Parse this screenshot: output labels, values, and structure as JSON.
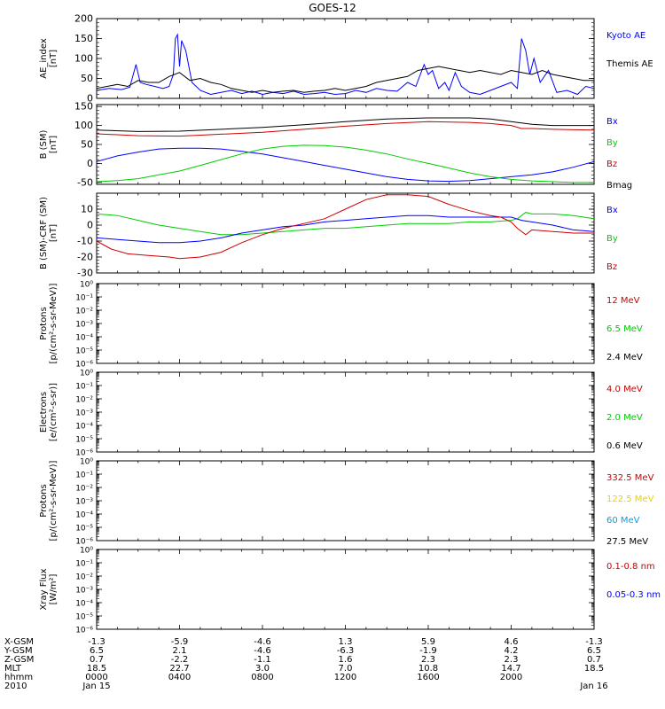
{
  "title": "GOES-12",
  "colors": {
    "black": "#000000",
    "blue": "#0000ff",
    "green": "#00cc00",
    "red": "#cc0000",
    "yellow": "#e6d200",
    "cyan": "#00a0e6"
  },
  "chart_data": [
    {
      "type": "line",
      "ylabel": [
        "AE_index",
        "[nT]"
      ],
      "ylim": [
        0,
        200
      ],
      "yticks": [
        0,
        50,
        100,
        150,
        200
      ],
      "legend": [
        {
          "name": "Kyoto AE",
          "color": "blue"
        },
        {
          "name": "Themis AE",
          "color": "black"
        }
      ],
      "series": [
        {
          "name": "Kyoto AE",
          "color": "blue",
          "x": [
            0,
            0.6,
            1.2,
            1.6,
            1.9,
            2.1,
            2.4,
            2.8,
            3.2,
            3.5,
            3.7,
            3.8,
            3.9,
            4.0,
            4.1,
            4.3,
            4.6,
            5.0,
            5.5,
            6.0,
            6.5,
            7.0,
            7.5,
            8.0,
            8.5,
            9.0,
            9.5,
            10.0,
            10.5,
            11.0,
            11.5,
            12.0,
            12.5,
            13.0,
            13.5,
            14.0,
            14.5,
            15.0,
            15.4,
            15.8,
            16.0,
            16.2,
            16.5,
            16.8,
            17.0,
            17.3,
            17.6,
            18.0,
            18.5,
            19.0,
            19.5,
            20.0,
            20.3,
            20.5,
            20.7,
            20.9,
            21.1,
            21.4,
            21.8,
            22.2,
            22.7,
            23.2,
            23.6,
            24.0
          ],
          "y": [
            20,
            25,
            22,
            28,
            85,
            40,
            35,
            30,
            25,
            30,
            60,
            150,
            160,
            80,
            145,
            120,
            40,
            20,
            10,
            15,
            20,
            12,
            18,
            10,
            15,
            12,
            18,
            10,
            12,
            15,
            10,
            12,
            20,
            15,
            25,
            20,
            18,
            40,
            30,
            85,
            60,
            70,
            25,
            40,
            20,
            65,
            30,
            15,
            10,
            20,
            30,
            40,
            25,
            150,
            120,
            60,
            100,
            40,
            70,
            15,
            20,
            10,
            30,
            25
          ]
        },
        {
          "name": "Themis AE",
          "color": "black",
          "x": [
            0,
            0.5,
            1.0,
            1.5,
            2.0,
            2.5,
            3.0,
            3.5,
            4.0,
            4.5,
            5.0,
            5.5,
            6.0,
            6.5,
            7.0,
            7.5,
            8.0,
            8.5,
            9.0,
            9.5,
            10.0,
            10.5,
            11.0,
            11.5,
            12.0,
            12.5,
            13.0,
            13.5,
            14.0,
            14.5,
            15.0,
            15.5,
            16.0,
            16.5,
            17.0,
            17.5,
            18.0,
            18.5,
            19.0,
            19.5,
            20.0,
            20.5,
            21.0,
            21.5,
            22.0,
            22.5,
            23.0,
            23.5,
            24.0
          ],
          "y": [
            25,
            30,
            35,
            30,
            45,
            40,
            40,
            55,
            65,
            45,
            50,
            40,
            35,
            25,
            20,
            15,
            20,
            15,
            18,
            20,
            15,
            18,
            20,
            25,
            20,
            25,
            30,
            40,
            45,
            50,
            55,
            70,
            75,
            80,
            75,
            70,
            65,
            70,
            65,
            60,
            70,
            65,
            60,
            70,
            60,
            55,
            50,
            45,
            45
          ]
        }
      ]
    },
    {
      "type": "line",
      "ylabel": [
        "B (SM)",
        "[nT]"
      ],
      "ylim": [
        -55,
        155
      ],
      "yticks": [
        -50,
        0,
        50,
        100,
        150
      ],
      "legend": [
        {
          "name": "Bx",
          "color": "blue"
        },
        {
          "name": "By",
          "color": "green"
        },
        {
          "name": "Bz",
          "color": "red"
        },
        {
          "name": "Bmag",
          "color": "black"
        }
      ],
      "series": [
        {
          "name": "Bmag",
          "color": "black",
          "x": [
            0,
            2,
            4,
            6,
            8,
            10,
            12,
            14,
            16,
            18,
            19,
            20,
            21,
            22,
            24
          ],
          "y": [
            88,
            84,
            85,
            90,
            95,
            102,
            110,
            117,
            120,
            120,
            117,
            110,
            103,
            100,
            100
          ]
        },
        {
          "name": "Bz",
          "color": "red",
          "x": [
            0,
            2,
            4,
            6,
            8,
            10,
            12,
            14,
            16,
            18,
            19,
            20,
            20.5,
            21,
            22,
            24
          ],
          "y": [
            78,
            73,
            72,
            77,
            82,
            90,
            98,
            105,
            110,
            108,
            105,
            100,
            92,
            92,
            90,
            88
          ]
        },
        {
          "name": "Bx",
          "color": "blue",
          "x": [
            0,
            1,
            2,
            3,
            4,
            5,
            6,
            7,
            8,
            9,
            10,
            11,
            12,
            13,
            14,
            15,
            16,
            17,
            18,
            19,
            20,
            21,
            22,
            23,
            24
          ],
          "y": [
            5,
            20,
            30,
            38,
            40,
            40,
            38,
            32,
            25,
            15,
            5,
            -5,
            -15,
            -25,
            -35,
            -42,
            -46,
            -47,
            -45,
            -40,
            -35,
            -30,
            -22,
            -10,
            5
          ]
        },
        {
          "name": "By",
          "color": "green",
          "x": [
            0,
            1,
            2,
            3,
            4,
            5,
            6,
            7,
            8,
            9,
            10,
            11,
            12,
            13,
            14,
            15,
            16,
            17,
            18,
            19,
            20,
            21,
            22,
            23,
            24
          ],
          "y": [
            -48,
            -45,
            -40,
            -30,
            -20,
            -5,
            10,
            25,
            38,
            45,
            48,
            47,
            43,
            35,
            25,
            12,
            0,
            -12,
            -25,
            -35,
            -42,
            -46,
            -48,
            -50,
            -50
          ]
        }
      ]
    },
    {
      "type": "line",
      "ylabel": [
        "B (SM)-CRF (SM)",
        "[nT]"
      ],
      "ylim": [
        -30,
        20
      ],
      "yticks": [
        -30,
        -20,
        -10,
        0,
        10
      ],
      "legend": [
        {
          "name": "Bx",
          "color": "blue"
        },
        {
          "name": "By",
          "color": "green"
        },
        {
          "name": "Bz",
          "color": "red"
        }
      ],
      "series": [
        {
          "name": "By",
          "color": "green",
          "x": [
            0,
            1,
            2,
            3,
            4,
            5,
            6,
            7,
            8,
            9,
            10,
            11,
            12,
            13,
            14,
            15,
            16,
            17,
            18,
            19,
            20,
            20.3,
            20.7,
            21,
            22,
            23,
            24
          ],
          "y": [
            7,
            6,
            3,
            0,
            -2,
            -4,
            -6,
            -6,
            -5,
            -4,
            -3,
            -2,
            -2,
            -1,
            0,
            1,
            1,
            1,
            2,
            2,
            3,
            4,
            8,
            7,
            7,
            6,
            4
          ]
        },
        {
          "name": "Bx",
          "color": "blue",
          "x": [
            0,
            1,
            2,
            3,
            4,
            5,
            6,
            7,
            8,
            9,
            10,
            11,
            12,
            13,
            14,
            15,
            16,
            17,
            18,
            19,
            20,
            20.5,
            21,
            22,
            23,
            24
          ],
          "y": [
            -8,
            -9,
            -10,
            -11,
            -11,
            -10,
            -8,
            -5,
            -3,
            -1,
            0,
            2,
            3,
            4,
            5,
            6,
            6,
            5,
            5,
            5,
            5,
            3,
            2,
            0,
            -3,
            -4
          ]
        },
        {
          "name": "Bz",
          "color": "red",
          "x": [
            0,
            0.7,
            1.5,
            2.5,
            3.5,
            4,
            5,
            6,
            7,
            8,
            9,
            10,
            11,
            12,
            13,
            14,
            15,
            16,
            17,
            18,
            19,
            19.5,
            20,
            20.3,
            20.7,
            21,
            22,
            23,
            24
          ],
          "y": [
            -10,
            -15,
            -18,
            -19,
            -20,
            -21,
            -20,
            -17,
            -11,
            -6,
            -2,
            1,
            4,
            10,
            16,
            19,
            19,
            18,
            13,
            9,
            6,
            5,
            2,
            -2,
            -6,
            -3,
            -4,
            -5,
            -5
          ]
        }
      ]
    },
    {
      "type": "line",
      "ylabel": [
        "Protons",
        "[p/(cm²-s-sr-MeV)]"
      ],
      "log": true,
      "yexp_range": [
        -6,
        0
      ],
      "yticks": [
        "10⁻⁶",
        "10⁻⁵",
        "10⁻⁴",
        "10⁻³",
        "10⁻²",
        "10⁻¹",
        "10⁰"
      ],
      "legend": [
        {
          "name": "12 MeV",
          "color": "red"
        },
        {
          "name": "6.5 MeV",
          "color": "green"
        },
        {
          "name": "2.4 MeV",
          "color": "black"
        }
      ],
      "series": []
    },
    {
      "type": "line",
      "ylabel": [
        "Electrons",
        "[e/(cm²-s-sr)]"
      ],
      "log": true,
      "yexp_range": [
        -6,
        0
      ],
      "yticks": [
        "10⁻⁶",
        "10⁻⁵",
        "10⁻⁴",
        "10⁻³",
        "10⁻²",
        "10⁻¹",
        "10⁰"
      ],
      "legend": [
        {
          "name": "4.0 MeV",
          "color": "red"
        },
        {
          "name": "2.0 MeV",
          "color": "green"
        },
        {
          "name": "0.6 MeV",
          "color": "black"
        }
      ],
      "series": []
    },
    {
      "type": "line",
      "ylabel": [
        "Protons",
        "[p/(cm²-s-sr-MeV)]"
      ],
      "log": true,
      "yexp_range": [
        -6,
        0
      ],
      "yticks": [
        "10⁻⁶",
        "10⁻⁵",
        "10⁻⁴",
        "10⁻³",
        "10⁻²",
        "10⁻¹",
        "10⁰"
      ],
      "legend": [
        {
          "name": "332.5 MeV",
          "color": "red"
        },
        {
          "name": "122.5 MeV",
          "color": "yellow"
        },
        {
          "name": "60 MeV",
          "color": "cyan"
        },
        {
          "name": "27.5 MeV",
          "color": "black"
        }
      ],
      "series": []
    },
    {
      "type": "line",
      "ylabel": [
        "Xray Flux",
        "[W/m²]"
      ],
      "log": true,
      "yexp_range": [
        -6,
        0
      ],
      "yticks": [
        "10⁻⁶",
        "10⁻⁵",
        "10⁻⁴",
        "10⁻³",
        "10⁻²",
        "10⁻¹",
        "10⁰"
      ],
      "legend": [
        {
          "name": "0.1-0.8 nm",
          "color": "red"
        },
        {
          "name": "0.05-0.3 nm",
          "color": "blue"
        }
      ],
      "series": []
    }
  ],
  "xaxis": {
    "hours": [
      0,
      4,
      8,
      12,
      16,
      20,
      24
    ],
    "row_labels": [
      "X-GSM",
      "Y-GSM",
      "Z-GSM",
      "MLT",
      "hhmm",
      "2010"
    ],
    "columns": [
      [
        "-1.3",
        "6.5",
        "0.7",
        "18.5",
        "0000",
        "Jan 15"
      ],
      [
        "-5.9",
        "2.1",
        "-2.2",
        "22.7",
        "0400",
        ""
      ],
      [
        "-4.6",
        "-4.6",
        "-1.1",
        "3.0",
        "0800",
        ""
      ],
      [
        "1.3",
        "-6.3",
        "1.6",
        "7.0",
        "1200",
        ""
      ],
      [
        "5.9",
        "-1.9",
        "2.3",
        "10.8",
        "1600",
        ""
      ],
      [
        "4.6",
        "4.2",
        "2.3",
        "14.7",
        "2000",
        ""
      ],
      [
        "-1.3",
        "6.5",
        "0.7",
        "18.5",
        "",
        "Jan 16"
      ]
    ]
  }
}
